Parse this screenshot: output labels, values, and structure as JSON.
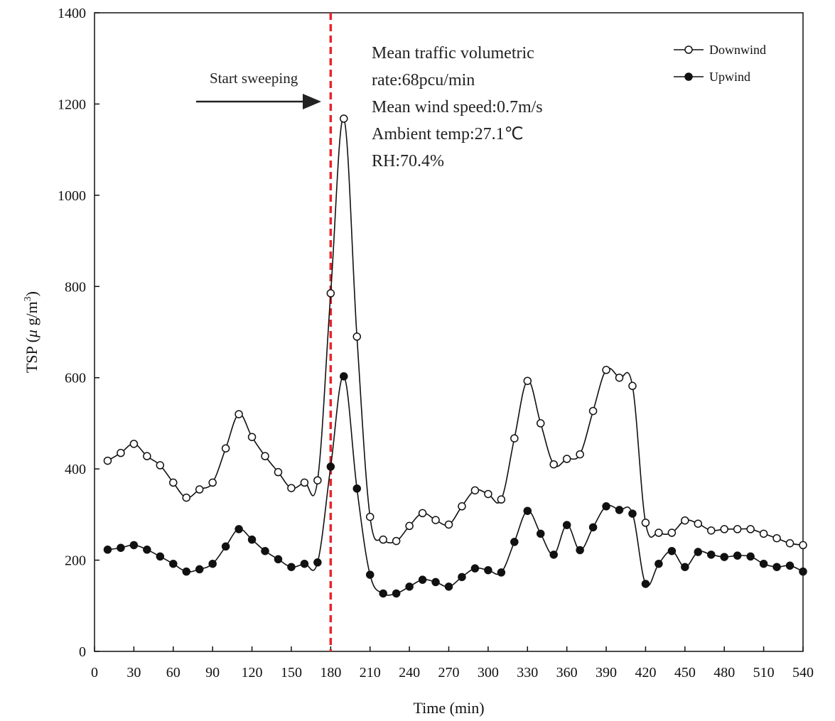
{
  "chart_data": {
    "type": "line",
    "xlabel": "Time (min)",
    "ylabel_parts": [
      "TSP (",
      "μ",
      " g/m",
      "3",
      ")"
    ],
    "xlim": [
      0,
      540
    ],
    "ylim": [
      0,
      1400
    ],
    "x_ticks": [
      0,
      30,
      60,
      90,
      120,
      150,
      180,
      210,
      240,
      270,
      300,
      330,
      360,
      390,
      420,
      450,
      480,
      510,
      540
    ],
    "y_ticks": [
      0,
      200,
      400,
      600,
      800,
      1000,
      1200,
      1400
    ],
    "x": [
      10,
      20,
      30,
      40,
      50,
      60,
      70,
      80,
      90,
      100,
      110,
      120,
      130,
      140,
      150,
      160,
      170,
      180,
      190,
      200,
      210,
      220,
      230,
      240,
      250,
      260,
      270,
      280,
      290,
      300,
      310,
      320,
      330,
      340,
      350,
      360,
      370,
      380,
      390,
      400,
      410,
      420,
      430,
      440,
      450,
      460,
      470,
      480,
      490,
      500,
      510,
      520,
      530,
      540
    ],
    "series": [
      {
        "name": "Downwind",
        "marker": "open-circle",
        "values": [
          418,
          435,
          455,
          428,
          408,
          370,
          337,
          355,
          370,
          445,
          520,
          470,
          428,
          393,
          358,
          370,
          375,
          785,
          1168,
          690,
          295,
          245,
          242,
          275,
          303,
          288,
          278,
          318,
          353,
          345,
          333,
          467,
          593,
          500,
          410,
          422,
          432,
          527,
          617,
          600,
          582,
          282,
          260,
          260,
          287,
          280,
          265,
          268,
          268,
          268,
          258,
          248,
          237,
          233
        ]
      },
      {
        "name": "Upwind",
        "marker": "filled-circle",
        "values": [
          223,
          227,
          233,
          223,
          208,
          192,
          175,
          180,
          192,
          230,
          268,
          245,
          220,
          202,
          185,
          192,
          195,
          405,
          603,
          357,
          168,
          127,
          127,
          142,
          157,
          152,
          142,
          163,
          182,
          178,
          173,
          240,
          308,
          258,
          212,
          277,
          222,
          272,
          318,
          310,
          302,
          148,
          192,
          220,
          185,
          218,
          212,
          207,
          210,
          208,
          192,
          185,
          188,
          175
        ]
      }
    ],
    "vline": {
      "x": 180,
      "color": "#e8252a",
      "style": "dashed"
    },
    "arrow_label": "Start sweeping",
    "annotation_lines": [
      "Mean traffic volumetric",
      "rate:68pcu/min",
      "Mean wind speed:0.7m/s",
      "Ambient temp:27.1℃",
      "RH:70.4%"
    ],
    "legend_position": "top-right",
    "grid": false,
    "line_color": "#111111"
  }
}
